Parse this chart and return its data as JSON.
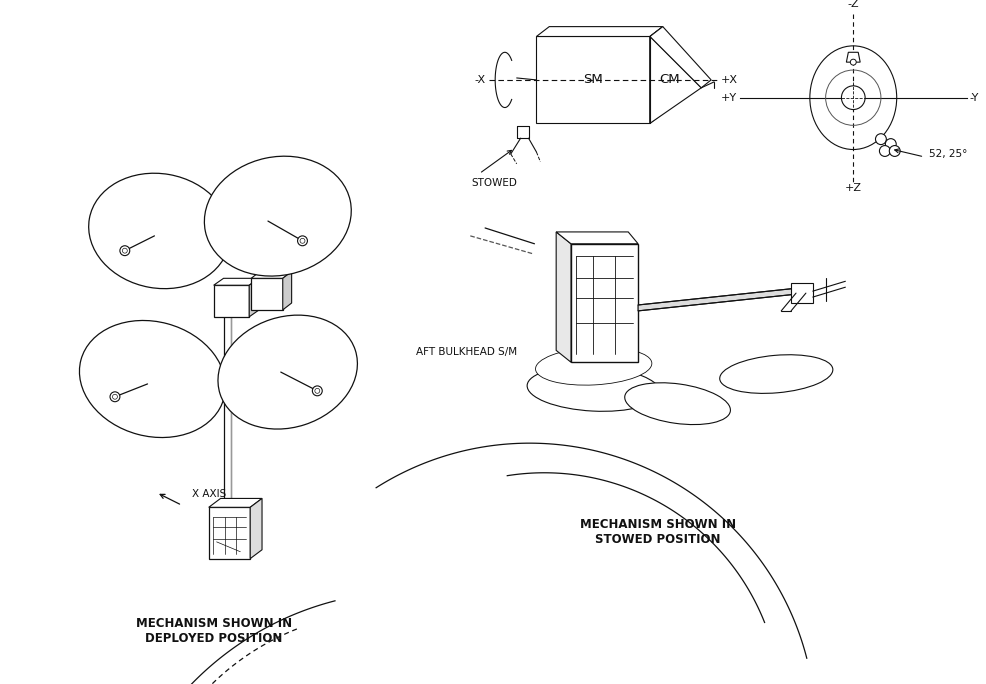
{
  "bg_color": "#ffffff",
  "line_color": "#111111",
  "text_color": "#111111",
  "labels": {
    "deployed": "MECHANISM SHOWN IN\nDEPLOYED POSITION",
    "stowed_pos": "MECHANISM SHOWN IN\nSTOWED POSITION",
    "aft_bulkhead": "AFT BULKHEAD S/M",
    "x_axis": "X AXIS",
    "stowed_label": "STOWED",
    "sm": "SM",
    "cm": "CM",
    "minus_x": "-X",
    "plus_x": "+X",
    "plus_y": "+Y",
    "minus_z": "-Z",
    "plus_z": "+Z",
    "y_label": "-Y",
    "angle_label": "52, 25°"
  }
}
